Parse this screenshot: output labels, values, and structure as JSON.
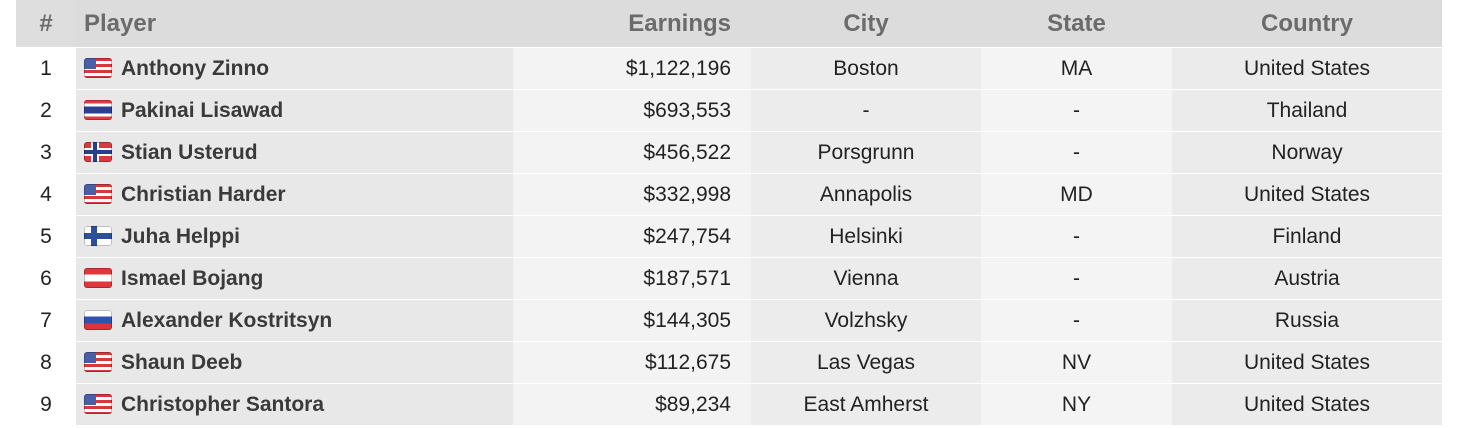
{
  "columns": {
    "rank": "#",
    "player": "Player",
    "earnings": "Earnings",
    "city": "City",
    "state": "State",
    "country": "Country"
  },
  "rows": [
    {
      "rank": "1",
      "player": "Anthony Zinno",
      "flag": "us-flag-icon",
      "earnings": "$1,122,196",
      "city": "Boston",
      "state": "MA",
      "country": "United States"
    },
    {
      "rank": "2",
      "player": "Pakinai Lisawad",
      "flag": "thailand-flag-icon",
      "earnings": "$693,553",
      "city": "-",
      "state": "-",
      "country": "Thailand"
    },
    {
      "rank": "3",
      "player": "Stian Usterud",
      "flag": "norway-flag-icon",
      "earnings": "$456,522",
      "city": "Porsgrunn",
      "state": "-",
      "country": "Norway"
    },
    {
      "rank": "4",
      "player": "Christian Harder",
      "flag": "us-flag-icon",
      "earnings": "$332,998",
      "city": "Annapolis",
      "state": "MD",
      "country": "United States"
    },
    {
      "rank": "5",
      "player": "Juha Helppi",
      "flag": "finland-flag-icon",
      "earnings": "$247,754",
      "city": "Helsinki",
      "state": "-",
      "country": "Finland"
    },
    {
      "rank": "6",
      "player": "Ismael Bojang",
      "flag": "austria-flag-icon",
      "earnings": "$187,571",
      "city": "Vienna",
      "state": "-",
      "country": "Austria"
    },
    {
      "rank": "7",
      "player": "Alexander Kostritsyn",
      "flag": "russia-flag-icon",
      "earnings": "$144,305",
      "city": "Volzhsky",
      "state": "-",
      "country": "Russia"
    },
    {
      "rank": "8",
      "player": "Shaun Deeb",
      "flag": "us-flag-icon",
      "earnings": "$112,675",
      "city": "Las Vegas",
      "state": "NV",
      "country": "United States"
    },
    {
      "rank": "9",
      "player": "Christopher Santora",
      "flag": "us-flag-icon",
      "earnings": "$89,234",
      "city": "East Amherst",
      "state": "NY",
      "country": "United States"
    }
  ]
}
